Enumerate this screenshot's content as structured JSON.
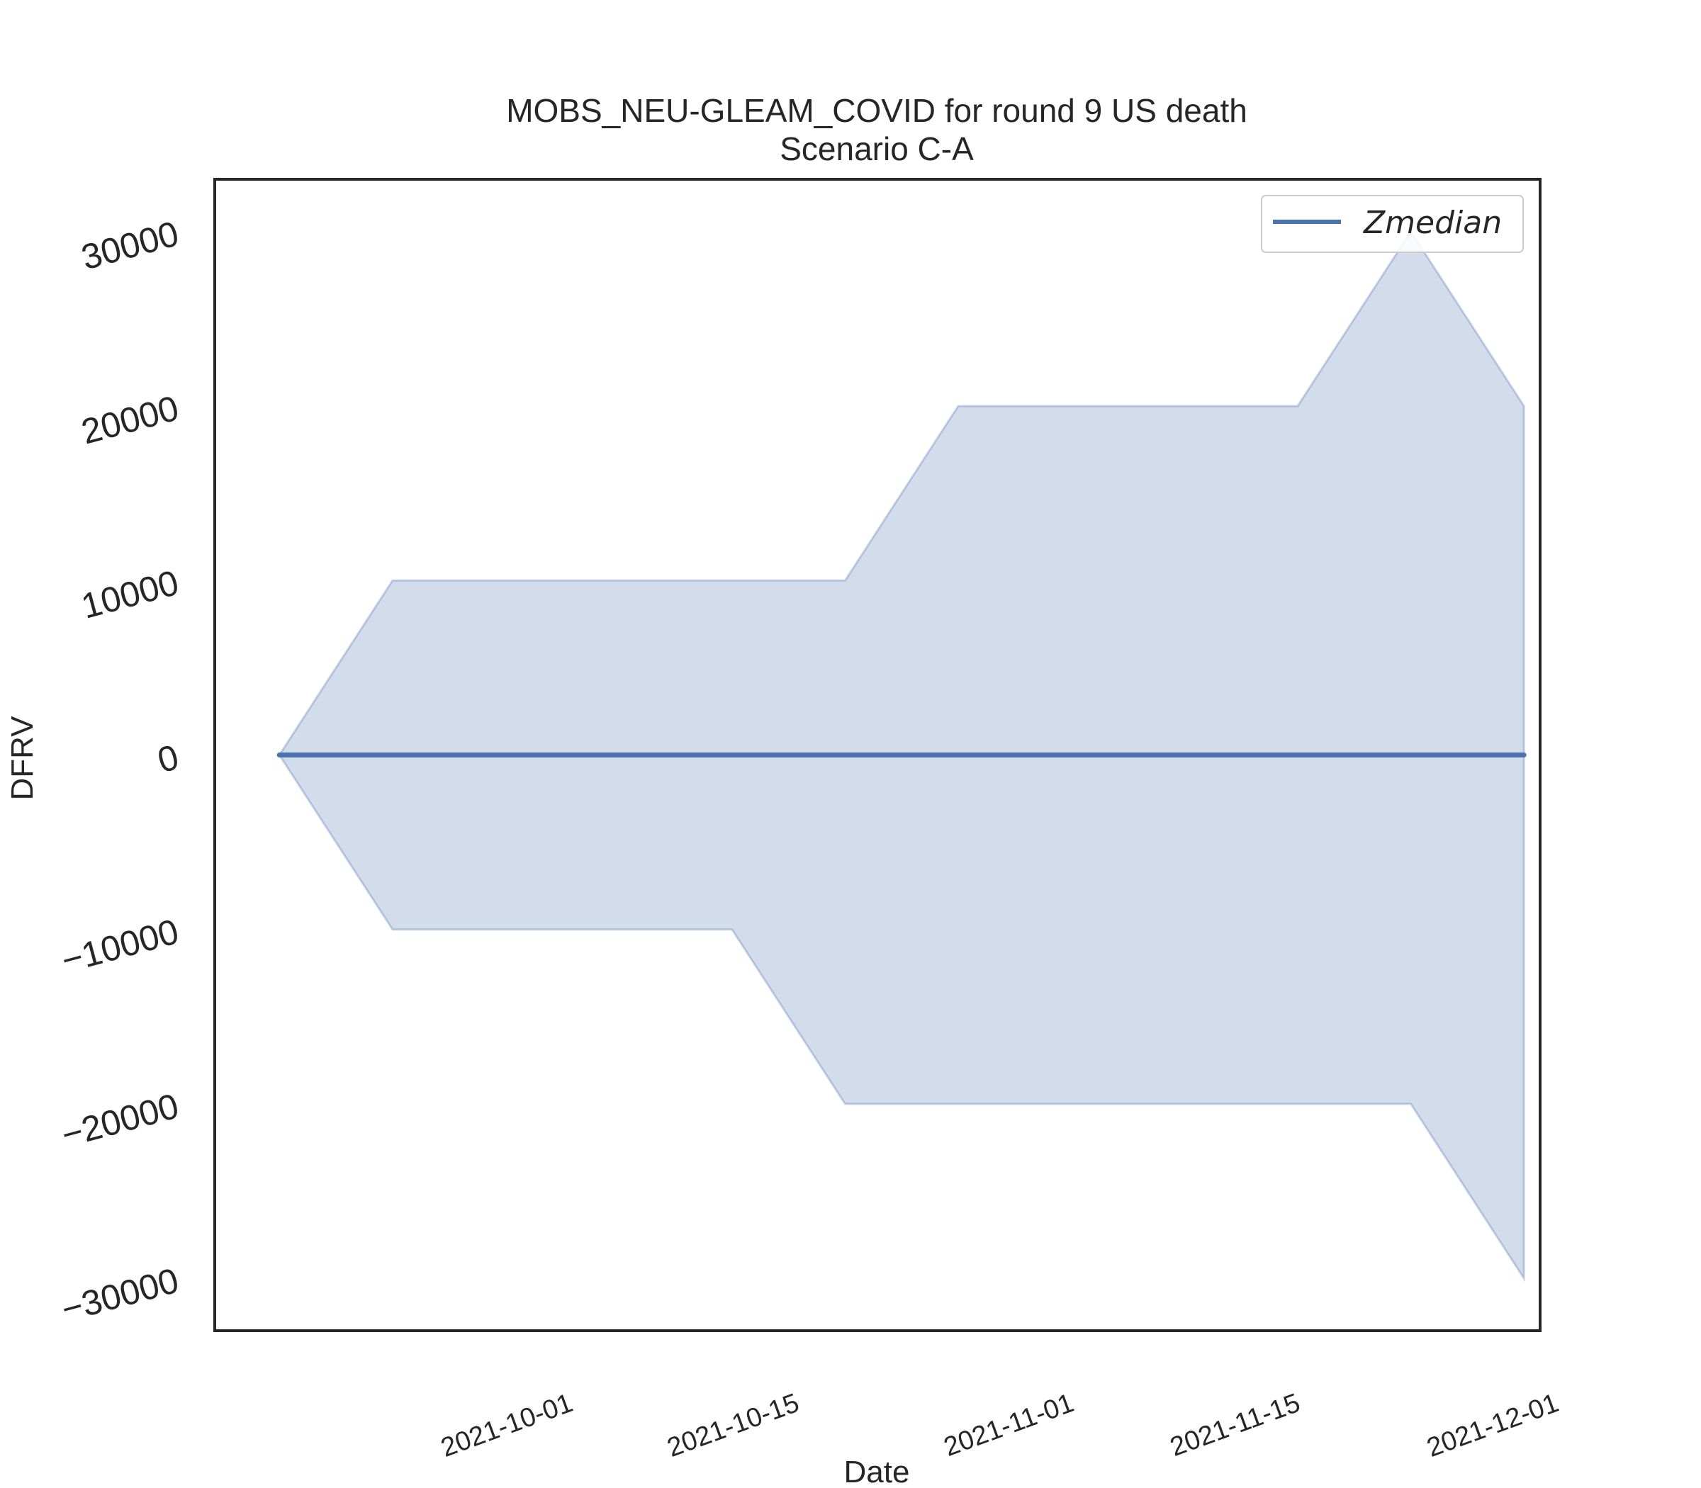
{
  "chart_data": {
    "type": "area",
    "title": "MOBS_NEU-GLEAM_COVID for round 9 US death",
    "subtitle": "Scenario C-A",
    "xlabel": "Date",
    "ylabel": "DFRV",
    "x_ticks": [
      "2021-10-01",
      "2021-10-15",
      "2021-11-01",
      "2021-11-15",
      "2021-12-01"
    ],
    "y_ticks": [
      -30000,
      -20000,
      -10000,
      0,
      10000,
      20000,
      30000
    ],
    "y_tick_labels": [
      "−30000",
      "−20000",
      "−10000",
      "0",
      "10000",
      "20000",
      "30000"
    ],
    "ylim": [
      -33000,
      33000
    ],
    "xlim": [
      "2021-09-14",
      "2021-12-05"
    ],
    "grid": false,
    "legend": {
      "position": "top-right",
      "entries": [
        "Zmedian"
      ]
    },
    "x": [
      "2021-09-18",
      "2021-09-25",
      "2021-10-02",
      "2021-10-09",
      "2021-10-16",
      "2021-10-23",
      "2021-10-30",
      "2021-11-06",
      "2021-11-13",
      "2021-11-20",
      "2021-11-27",
      "2021-12-04"
    ],
    "series": [
      {
        "name": "Zmedian",
        "color": "#4c72b0",
        "values": [
          0,
          0,
          0,
          0,
          0,
          0,
          0,
          0,
          0,
          0,
          0,
          0
        ]
      }
    ],
    "band": {
      "color": "#4c72b0",
      "opacity": 0.25,
      "upper": [
        0,
        10000,
        10000,
        10000,
        10000,
        10000,
        20000,
        20000,
        20000,
        20000,
        30000,
        20000
      ],
      "lower": [
        0,
        -10000,
        -10000,
        -10000,
        -10000,
        -20000,
        -20000,
        -20000,
        -20000,
        -20000,
        -20000,
        -30000
      ]
    }
  }
}
